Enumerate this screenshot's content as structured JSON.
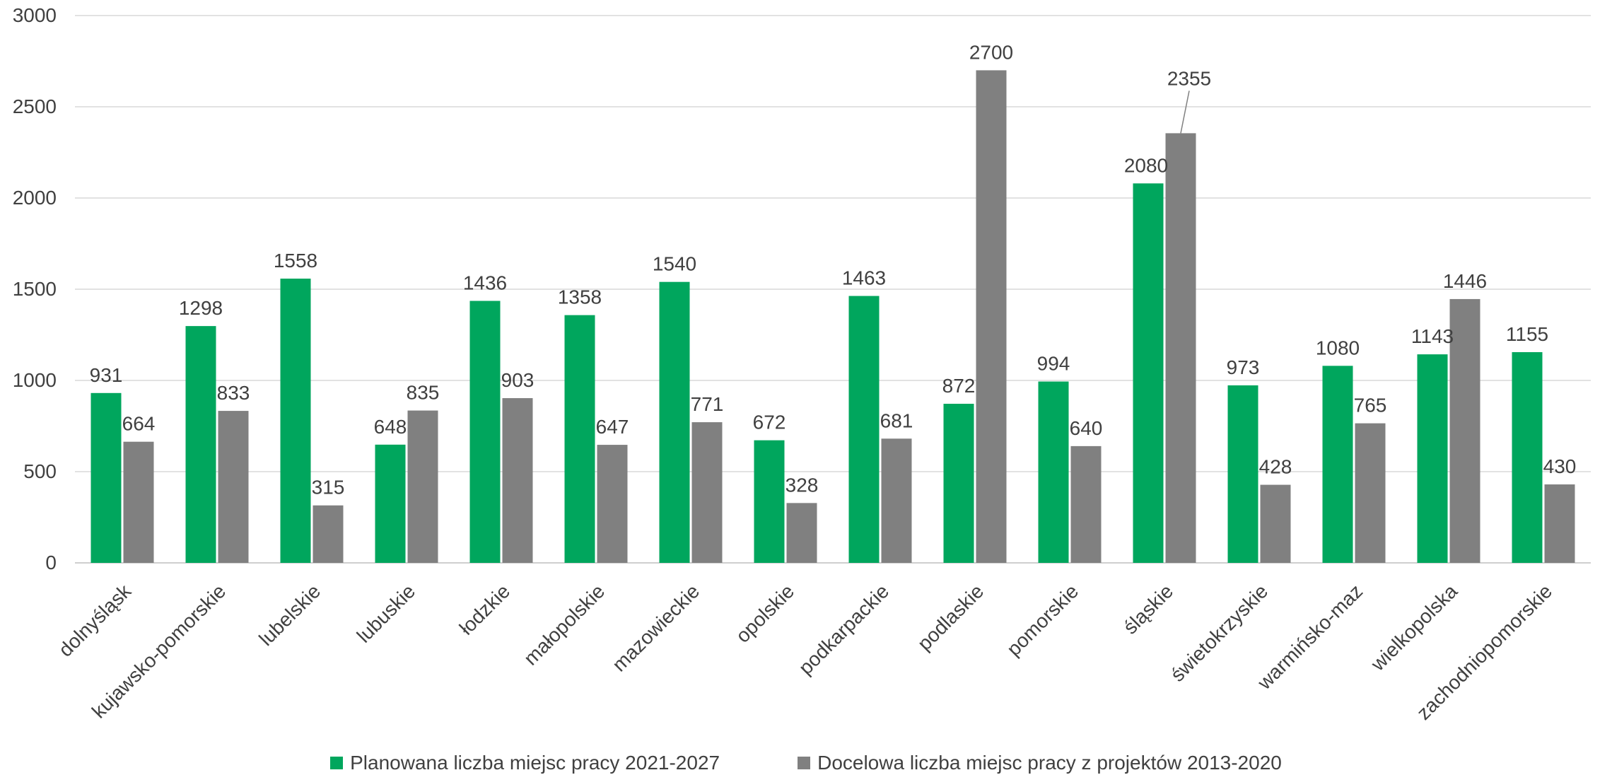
{
  "chart_data": {
    "type": "bar",
    "title": "",
    "xlabel": "",
    "ylabel": "",
    "ylim": [
      0,
      3000
    ],
    "yticks": [
      0,
      500,
      1000,
      1500,
      2000,
      2500,
      3000
    ],
    "grid": true,
    "legend_position": "bottom",
    "categories": [
      "dolnyśląsk",
      "kujawsko-pomorskie",
      "lubelskie",
      "lubuskie",
      "łodzkie",
      "małopolskie",
      "mazowieckie",
      "opolskie",
      "podkarpackie",
      "podlaskie",
      "pomorskie",
      "śląskie",
      "świetokrzyskie",
      "warmińsko-maz",
      "wielkopolska",
      "zachodniopomorskie"
    ],
    "series": [
      {
        "name": "Planowana liczba miejsc pracy 2021-2027",
        "color": "#00A65D",
        "values": [
          931,
          1298,
          1558,
          648,
          1436,
          1358,
          1540,
          672,
          1463,
          872,
          994,
          2080,
          973,
          1080,
          1143,
          1155
        ]
      },
      {
        "name": "Docelowa liczba miejsc pracy z projektów 2013-2020",
        "color": "#808080",
        "values": [
          664,
          833,
          315,
          835,
          903,
          647,
          771,
          328,
          681,
          2700,
          640,
          2355,
          428,
          765,
          1446,
          430
        ]
      }
    ]
  }
}
